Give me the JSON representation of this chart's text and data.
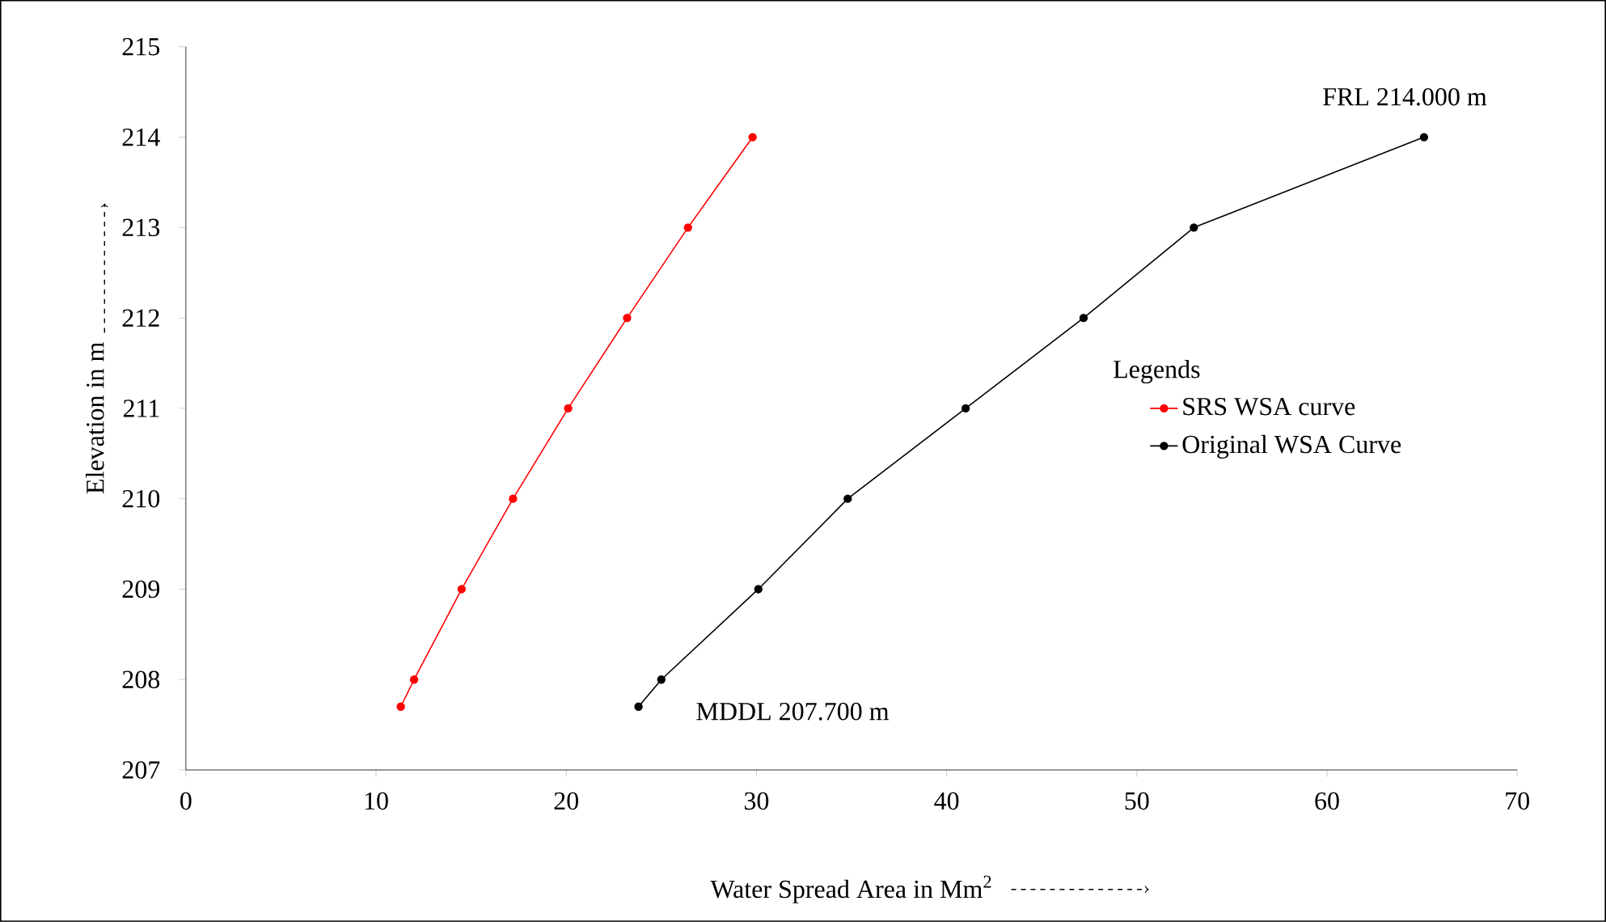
{
  "chart_data": {
    "type": "line",
    "xlabel": "Water Spread Area in Mm$^{2}$",
    "ylabel": "Elevation in m",
    "legend_title": "Legends",
    "legend": "right",
    "marker": "circle",
    "line_style": "solid",
    "grid": false,
    "xlim": [
      0,
      70
    ],
    "ylim": [
      207,
      215
    ],
    "xticks": [
      0,
      10,
      20,
      30,
      40,
      50,
      60,
      70
    ],
    "yticks": [
      207,
      208,
      209,
      210,
      211,
      212,
      213,
      214,
      215
    ],
    "series": [
      {
        "name": "SRS WSA curve",
        "color": "#ff0000",
        "x": [
          11.3,
          12.0,
          14.5,
          17.2,
          20.1,
          23.2,
          26.4,
          29.8
        ],
        "values": [
          207.7,
          208,
          209,
          210,
          211,
          212,
          213,
          214
        ]
      },
      {
        "name": "Original WSA Curve",
        "color": "#000000",
        "x": [
          23.8,
          25.0,
          30.1,
          34.8,
          41.0,
          47.2,
          53.0,
          65.1
        ],
        "values": [
          207.7,
          208,
          209,
          210,
          211,
          212,
          213,
          214
        ]
      }
    ],
    "annotations": [
      {
        "text": "FRL 214.000 m",
        "x": 65.1,
        "y": 214
      },
      {
        "text": "MDDL 207.700 m",
        "x": 23.8,
        "y": 207.7
      }
    ]
  }
}
